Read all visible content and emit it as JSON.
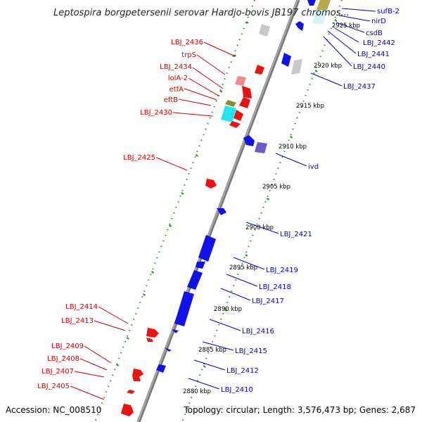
{
  "title": "Leptospira borgpetersenii serovar Hardjo-bovis JB197 chromos...",
  "footer": {
    "accession": "Accession: NC_008510",
    "topology": "Topology: circular; Length: 3,576,473 bp; Genes: 2,687"
  },
  "colors": {
    "backbone": "#8c8c8c",
    "ticks": "#2a8a2a",
    "forward": "#ee1111",
    "reverse": "#1111ee",
    "forward_label": "#cc0000",
    "reverse_label": "#0000cc",
    "cyan": "#22e5f0",
    "olive": "#8c8c2a",
    "grey": "#c8c8c8",
    "slate": "#6a5acd",
    "gold": "#b8a84a",
    "pink": "#f08c8c"
  },
  "kbp_marks": [
    {
      "kbp": 2925,
      "label": "2925 kbp"
    },
    {
      "kbp": 2920,
      "label": "2920 kbp"
    },
    {
      "kbp": 2915,
      "label": "2915 kbp"
    },
    {
      "kbp": 2910,
      "label": "2910 kbp"
    },
    {
      "kbp": 2905,
      "label": "2905 kbp"
    },
    {
      "kbp": 2900,
      "label": "2900 kbp"
    },
    {
      "kbp": 2895,
      "label": "2895 kbp"
    },
    {
      "kbp": 2890,
      "label": "2890 kbp"
    },
    {
      "kbp": 2885,
      "label": "2885 kbp"
    },
    {
      "kbp": 2880,
      "label": "2880 kbp"
    }
  ],
  "forward_labels": [
    "LBJ_2436",
    "trpS",
    "LBJ_2434",
    "lolA-2",
    "etfA",
    "eftB",
    "LBJ_2430",
    "LBJ_2425",
    "LBJ_2414",
    "LBJ_2413",
    "LBJ_2409",
    "LBJ_2408",
    "LBJ_2407",
    "LBJ_2405"
  ],
  "reverse_labels": [
    "sufB-2",
    "nirD",
    "csdB",
    "LBJ_2442",
    "LBJ_2441",
    "LBJ_2440",
    "LBJ_2437",
    "ivd",
    "LBJ_2421",
    "LBJ_2419",
    "LBJ_2418",
    "LBJ_2417",
    "LBJ_2416",
    "LBJ_2415",
    "LBJ_2412",
    "LBJ_2410"
  ]
}
